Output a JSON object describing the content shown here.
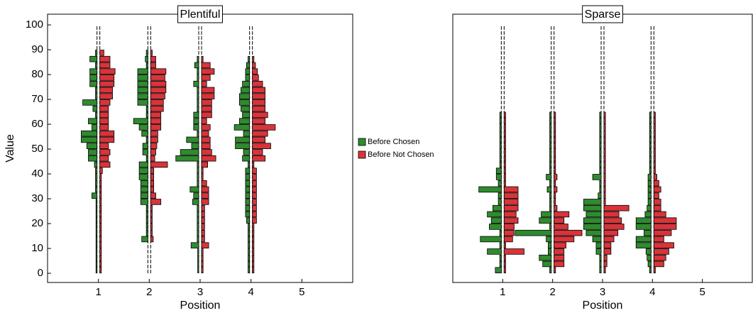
{
  "chart_data": [
    {
      "type": "histogram",
      "title": "Plentiful",
      "xlabel": "Position",
      "ylabel": "Value",
      "x": [
        1,
        2,
        3,
        4
      ],
      "xlim": [
        0,
        6
      ],
      "xticks": [
        1,
        2,
        3,
        4,
        5
      ],
      "ylim": [
        -3.7,
        104.3
      ],
      "yticks": [
        0,
        10,
        20,
        30,
        40,
        50,
        60,
        70,
        80,
        90,
        100
      ],
      "bins": [
        0,
        2.5,
        5,
        7.5,
        10,
        12.5,
        15,
        17.5,
        20,
        22.5,
        25,
        27.5,
        30,
        32.5,
        35,
        37.5,
        40,
        42.5,
        45,
        47.5,
        50,
        52.5,
        55,
        57.5,
        60,
        62.5,
        65,
        67.5,
        70,
        72.5,
        75,
        77.5,
        80,
        82.5,
        85,
        87.5,
        90,
        92.5,
        95,
        97.5,
        100
      ],
      "series": [
        {
          "name": "Before Chosen",
          "color": "#2e8b2e",
          "values": [
            [
              0.02,
              0.02,
              0.02,
              0.02,
              0.02,
              0.02,
              0.02,
              0.02,
              0.02,
              0.02,
              0.02,
              0.02,
              0.1,
              0.03,
              0.03,
              0.03,
              0.03,
              0.05,
              0.17,
              0.17,
              0.2,
              0.31,
              0.31,
              0.1,
              0.17,
              0.03,
              0.08,
              0.28,
              0.03,
              0.03,
              0.14,
              0.14,
              0.14,
              0.03,
              0.14,
              0.03,
              0,
              0,
              0,
              0
            ],
            [
              0,
              0,
              0,
              0,
              0,
              0.12,
              0.03,
              0.03,
              0.03,
              0.03,
              0.03,
              0.14,
              0.14,
              0.14,
              0.14,
              0.17,
              0.17,
              0.17,
              0.03,
              0.1,
              0.1,
              0.03,
              0.12,
              0.17,
              0.28,
              0.03,
              0.03,
              0.2,
              0.2,
              0.2,
              0.2,
              0.2,
              0.2,
              0.03,
              0.05,
              0.03,
              0,
              0,
              0,
              0
            ],
            [
              0.02,
              0.02,
              0.02,
              0.02,
              0.15,
              0.03,
              0.03,
              0.03,
              0.03,
              0.03,
              0.03,
              0.12,
              0.1,
              0.17,
              0.03,
              0.03,
              0.03,
              0.03,
              0.45,
              0.36,
              0.14,
              0.24,
              0.03,
              0.1,
              0.1,
              0.1,
              0.03,
              0.03,
              0.03,
              0.03,
              0.1,
              0.03,
              0.03,
              0.08,
              0.03,
              0,
              0,
              0,
              0,
              0
            ],
            [
              0.03,
              0.03,
              0.03,
              0.03,
              0.03,
              0.03,
              0.03,
              0.03,
              0.06,
              0.08,
              0.08,
              0.08,
              0.08,
              0.08,
              0.08,
              0.08,
              0.08,
              0.03,
              0.14,
              0.12,
              0.28,
              0.28,
              0.12,
              0.3,
              0.2,
              0.14,
              0.17,
              0.2,
              0.2,
              0.17,
              0.14,
              0.08,
              0.08,
              0.06,
              0.03,
              0,
              0,
              0,
              0,
              0
            ]
          ]
        },
        {
          "name": "Before Not Chosen",
          "color": "#d8343a",
          "values": [
            [
              0.03,
              0.03,
              0.03,
              0.03,
              0.03,
              0.03,
              0.03,
              0.03,
              0.03,
              0.03,
              0.03,
              0.03,
              0.03,
              0.03,
              0.03,
              0.03,
              0.05,
              0.2,
              0.17,
              0.2,
              0.17,
              0.28,
              0.28,
              0.17,
              0.17,
              0.17,
              0.17,
              0.2,
              0.25,
              0.25,
              0.28,
              0.28,
              0.3,
              0.2,
              0.2,
              0.08,
              0,
              0,
              0,
              0
            ],
            [
              0,
              0,
              0,
              0,
              0,
              0.05,
              0.03,
              0.03,
              0.03,
              0.03,
              0.03,
              0.2,
              0.1,
              0.06,
              0.06,
              0.06,
              0.06,
              0.33,
              0.08,
              0.1,
              0.12,
              0.14,
              0.14,
              0.2,
              0.2,
              0.2,
              0.25,
              0.25,
              0.28,
              0.3,
              0.3,
              0.28,
              0.3,
              0.1,
              0.1,
              0.03,
              0,
              0,
              0,
              0
            ],
            [
              0.03,
              0.03,
              0.03,
              0.03,
              0.14,
              0.06,
              0.06,
              0.06,
              0.06,
              0.06,
              0.06,
              0.14,
              0.14,
              0.14,
              0.1,
              0.03,
              0.03,
              0.12,
              0.28,
              0.2,
              0.17,
              0.17,
              0.14,
              0.17,
              0.1,
              0.2,
              0.2,
              0.2,
              0.25,
              0.25,
              0.1,
              0.17,
              0.25,
              0.17,
              0.03,
              0,
              0,
              0,
              0,
              0
            ],
            [
              0.03,
              0.03,
              0.03,
              0.03,
              0.03,
              0.03,
              0.03,
              0.03,
              0.08,
              0.08,
              0.08,
              0.08,
              0.08,
              0.08,
              0.08,
              0.08,
              0.08,
              0.03,
              0.25,
              0.2,
              0.36,
              0.25,
              0.3,
              0.45,
              0.25,
              0.3,
              0.25,
              0.25,
              0.25,
              0.25,
              0.2,
              0.12,
              0.1,
              0.06,
              0.03,
              0,
              0,
              0,
              0,
              0
            ]
          ]
        }
      ]
    },
    {
      "type": "histogram",
      "title": "Sparse",
      "xlabel": "Position",
      "x": [
        1,
        2,
        3,
        4
      ],
      "xlim": [
        0,
        6
      ],
      "xticks": [
        1,
        2,
        3,
        4,
        5
      ],
      "ylim": [
        -3.7,
        104.3
      ],
      "bins": [
        0,
        2.5,
        5,
        7.5,
        10,
        12.5,
        15,
        17.5,
        20,
        22.5,
        25,
        27.5,
        30,
        32.5,
        35,
        37.5,
        40,
        42.5,
        45,
        47.5,
        50,
        52.5,
        55,
        57.5,
        60,
        62.5,
        65,
        67.5,
        70,
        72.5,
        75,
        77.5,
        80,
        82.5,
        85,
        87.5,
        90,
        92.5,
        95,
        97.5,
        100
      ],
      "series": [
        {
          "color": "#2e8b2e",
          "values": [
            [
              0.12,
              0.03,
              0.03,
              0.28,
              0.03,
              0.42,
              0.03,
              0.24,
              0.2,
              0.28,
              0.17,
              0.06,
              0.06,
              0.45,
              0.06,
              0.1,
              0.1,
              0.03,
              0.03,
              0.03,
              0.03,
              0.03,
              0.03,
              0.03,
              0.03,
              0.03,
              0,
              0,
              0,
              0,
              0,
              0,
              0,
              0,
              0,
              0,
              0,
              0,
              0,
              0
            ],
            [
              0.03,
              0.17,
              0.24,
              0.06,
              0.06,
              0.1,
              0.72,
              0.03,
              0.24,
              0.2,
              0.03,
              0.03,
              0.03,
              0.08,
              0.03,
              0.1,
              0.03,
              0.03,
              0.03,
              0.03,
              0.03,
              0.03,
              0.03,
              0.03,
              0.03,
              0.03,
              0,
              0,
              0,
              0,
              0,
              0,
              0,
              0,
              0,
              0,
              0,
              0,
              0,
              0
            ],
            [
              0.03,
              0.03,
              0.03,
              0.1,
              0.1,
              0.17,
              0.3,
              0.35,
              0.35,
              0.3,
              0.35,
              0.35,
              0.06,
              0.03,
              0.03,
              0.17,
              0.03,
              0.03,
              0.03,
              0.03,
              0.03,
              0.03,
              0.03,
              0.03,
              0.03,
              0.03,
              0,
              0,
              0,
              0,
              0,
              0,
              0,
              0,
              0,
              0,
              0,
              0,
              0,
              0
            ],
            [
              0.03,
              0.06,
              0.08,
              0.1,
              0.3,
              0.3,
              0.14,
              0.3,
              0.3,
              0.12,
              0.08,
              0.06,
              0.06,
              0.06,
              0.06,
              0.06,
              0.03,
              0.03,
              0.03,
              0.03,
              0.03,
              0.03,
              0.03,
              0.03,
              0.03,
              0.03,
              0,
              0,
              0,
              0,
              0,
              0,
              0,
              0,
              0,
              0,
              0,
              0,
              0,
              0
            ]
          ]
        },
        {
          "color": "#d8343a",
          "values": [
            [
              0.03,
              0.03,
              0.03,
              0.4,
              0.03,
              0.17,
              0.2,
              0.2,
              0.28,
              0.24,
              0.28,
              0.28,
              0.28,
              0.28,
              0.03,
              0.03,
              0.03,
              0.03,
              0.03,
              0.03,
              0.03,
              0.03,
              0.03,
              0.03,
              0.03,
              0.03,
              0,
              0,
              0,
              0,
              0,
              0,
              0,
              0,
              0,
              0,
              0,
              0,
              0,
              0
            ],
            [
              0.03,
              0.2,
              0.2,
              0.2,
              0.24,
              0.4,
              0.56,
              0.28,
              0.2,
              0.3,
              0.06,
              0.03,
              0.03,
              0.06,
              0.03,
              0.06,
              0.03,
              0.03,
              0.03,
              0.03,
              0.03,
              0.03,
              0.03,
              0.03,
              0.03,
              0.03,
              0,
              0,
              0,
              0,
              0,
              0,
              0,
              0,
              0,
              0,
              0,
              0,
              0,
              0
            ],
            [
              0.03,
              0.06,
              0.06,
              0.14,
              0.14,
              0.2,
              0.28,
              0.4,
              0.35,
              0.3,
              0.5,
              0.03,
              0.03,
              0.03,
              0.03,
              0.03,
              0.03,
              0.03,
              0.03,
              0.03,
              0.03,
              0.03,
              0.03,
              0.03,
              0.03,
              0.03,
              0,
              0,
              0,
              0,
              0,
              0,
              0,
              0,
              0,
              0,
              0,
              0,
              0,
              0
            ],
            [
              0.03,
              0.2,
              0.24,
              0.3,
              0.4,
              0.2,
              0.35,
              0.45,
              0.45,
              0.24,
              0.14,
              0.14,
              0.1,
              0.14,
              0.1,
              0.06,
              0.03,
              0.03,
              0.03,
              0.03,
              0.03,
              0.03,
              0.03,
              0.03,
              0.03,
              0.03,
              0,
              0,
              0,
              0,
              0,
              0,
              0,
              0,
              0,
              0,
              0,
              0,
              0,
              0
            ]
          ]
        }
      ]
    }
  ]
}
